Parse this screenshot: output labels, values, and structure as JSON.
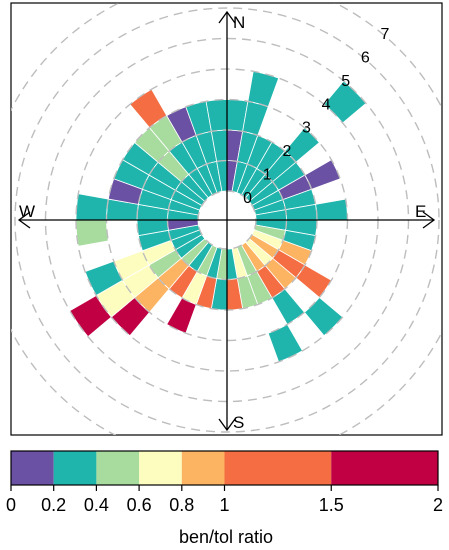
{
  "chart_data": {
    "type": "polar_bar",
    "compass": {
      "north": "N",
      "east": "E",
      "south": "S",
      "west": "W"
    },
    "radial_ticks": [
      "0",
      "1",
      "2",
      "3",
      "4",
      "5",
      "6",
      "7"
    ],
    "radial_range": [
      0,
      7
    ],
    "direction_bin_deg": 10,
    "speed_bin": 1,
    "legend": {
      "label": "ben/tol ratio",
      "placement": "bottom",
      "breaks": [
        0,
        0.2,
        0.4,
        0.6,
        0.8,
        1,
        1.5,
        2
      ],
      "tick_labels": [
        "0",
        "0.2",
        "0.4",
        "0.6",
        "0.8",
        "1",
        "1.5",
        "2"
      ],
      "colors": [
        "#6a51a3",
        "#1fb5ad",
        "#a8dc9f",
        "#fcfdbf",
        "#fdb462",
        "#f46d43",
        "#c00043"
      ]
    },
    "cells": [
      {
        "direction": 5,
        "speed_min": 0,
        "speed_max": 1,
        "ratio": 0.1
      },
      {
        "direction": 15,
        "speed_min": 0,
        "speed_max": 1,
        "ratio": 0.3
      },
      {
        "direction": 25,
        "speed_min": 0,
        "speed_max": 1,
        "ratio": 0.3
      },
      {
        "direction": 35,
        "speed_min": 0,
        "speed_max": 1,
        "ratio": 0.3
      },
      {
        "direction": 45,
        "speed_min": 0,
        "speed_max": 1,
        "ratio": 0.3
      },
      {
        "direction": 55,
        "speed_min": 0,
        "speed_max": 1,
        "ratio": 0.3
      },
      {
        "direction": 65,
        "speed_min": 0,
        "speed_max": 1,
        "ratio": 0.3
      },
      {
        "direction": 75,
        "speed_min": 0,
        "speed_max": 1,
        "ratio": 0.3
      },
      {
        "direction": 85,
        "speed_min": 0,
        "speed_max": 1,
        "ratio": 0.3
      },
      {
        "direction": 95,
        "speed_min": 0,
        "speed_max": 1,
        "ratio": 0.3
      },
      {
        "direction": 105,
        "speed_min": 0,
        "speed_max": 1,
        "ratio": 0.5
      },
      {
        "direction": 115,
        "speed_min": 0,
        "speed_max": 1,
        "ratio": 0.7
      },
      {
        "direction": 125,
        "speed_min": 0,
        "speed_max": 1,
        "ratio": 0.9
      },
      {
        "direction": 135,
        "speed_min": 0,
        "speed_max": 1,
        "ratio": 0.7
      },
      {
        "direction": 145,
        "speed_min": 0,
        "speed_max": 1,
        "ratio": 0.9
      },
      {
        "direction": 155,
        "speed_min": 0,
        "speed_max": 1,
        "ratio": 0.5
      },
      {
        "direction": 165,
        "speed_min": 0,
        "speed_max": 1,
        "ratio": 0.7
      },
      {
        "direction": 175,
        "speed_min": 0,
        "speed_max": 1,
        "ratio": 0.3
      },
      {
        "direction": 185,
        "speed_min": 0,
        "speed_max": 1,
        "ratio": 0.5
      },
      {
        "direction": 195,
        "speed_min": 0,
        "speed_max": 1,
        "ratio": 0.3
      },
      {
        "direction": 205,
        "speed_min": 0,
        "speed_max": 1,
        "ratio": 0.5
      },
      {
        "direction": 215,
        "speed_min": 0,
        "speed_max": 1,
        "ratio": 0.3
      },
      {
        "direction": 225,
        "speed_min": 0,
        "speed_max": 1,
        "ratio": 0.5
      },
      {
        "direction": 235,
        "speed_min": 0,
        "speed_max": 1,
        "ratio": 0.3
      },
      {
        "direction": 245,
        "speed_min": 0,
        "speed_max": 1,
        "ratio": 0.3
      },
      {
        "direction": 255,
        "speed_min": 0,
        "speed_max": 1,
        "ratio": 0.3
      },
      {
        "direction": 265,
        "speed_min": 0,
        "speed_max": 1,
        "ratio": 0.1
      },
      {
        "direction": 275,
        "speed_min": 0,
        "speed_max": 1,
        "ratio": 0.3
      },
      {
        "direction": 285,
        "speed_min": 0,
        "speed_max": 1,
        "ratio": 0.3
      },
      {
        "direction": 295,
        "speed_min": 0,
        "speed_max": 1,
        "ratio": 0.3
      },
      {
        "direction": 305,
        "speed_min": 0,
        "speed_max": 1,
        "ratio": 0.3
      },
      {
        "direction": 315,
        "speed_min": 0,
        "speed_max": 1,
        "ratio": 0.3
      },
      {
        "direction": 325,
        "speed_min": 0,
        "speed_max": 1,
        "ratio": 0.3
      },
      {
        "direction": 335,
        "speed_min": 0,
        "speed_max": 1,
        "ratio": 0.3
      },
      {
        "direction": 345,
        "speed_min": 0,
        "speed_max": 1,
        "ratio": 0.3
      },
      {
        "direction": 355,
        "speed_min": 0,
        "speed_max": 1,
        "ratio": 0.3
      },
      {
        "direction": 5,
        "speed_min": 1,
        "speed_max": 2,
        "ratio": 0.1
      },
      {
        "direction": 15,
        "speed_min": 1,
        "speed_max": 2,
        "ratio": 0.3
      },
      {
        "direction": 25,
        "speed_min": 1,
        "speed_max": 2,
        "ratio": 0.3
      },
      {
        "direction": 35,
        "speed_min": 1,
        "speed_max": 2,
        "ratio": 0.3
      },
      {
        "direction": 45,
        "speed_min": 1,
        "speed_max": 2,
        "ratio": 0.3
      },
      {
        "direction": 55,
        "speed_min": 1,
        "speed_max": 2,
        "ratio": 0.3
      },
      {
        "direction": 65,
        "speed_min": 1,
        "speed_max": 2,
        "ratio": 0.1
      },
      {
        "direction": 75,
        "speed_min": 1,
        "speed_max": 2,
        "ratio": 0.3
      },
      {
        "direction": 85,
        "speed_min": 1,
        "speed_max": 2,
        "ratio": 0.3
      },
      {
        "direction": 95,
        "speed_min": 1,
        "speed_max": 2,
        "ratio": 0.3
      },
      {
        "direction": 105,
        "speed_min": 1,
        "speed_max": 2,
        "ratio": 0.3
      },
      {
        "direction": 115,
        "speed_min": 1,
        "speed_max": 2,
        "ratio": 0.9
      },
      {
        "direction": 125,
        "speed_min": 1,
        "speed_max": 2,
        "ratio": 1.2
      },
      {
        "direction": 135,
        "speed_min": 1,
        "speed_max": 2,
        "ratio": 0.9
      },
      {
        "direction": 145,
        "speed_min": 1,
        "speed_max": 2,
        "ratio": 1.2
      },
      {
        "direction": 155,
        "speed_min": 1,
        "speed_max": 2,
        "ratio": 0.5
      },
      {
        "direction": 165,
        "speed_min": 1,
        "speed_max": 2,
        "ratio": 0.5
      },
      {
        "direction": 175,
        "speed_min": 1,
        "speed_max": 2,
        "ratio": 1.2
      },
      {
        "direction": 185,
        "speed_min": 1,
        "speed_max": 2,
        "ratio": 0.3
      },
      {
        "direction": 195,
        "speed_min": 1,
        "speed_max": 2,
        "ratio": 1.2
      },
      {
        "direction": 205,
        "speed_min": 1,
        "speed_max": 2,
        "ratio": 0.7
      },
      {
        "direction": 215,
        "speed_min": 1,
        "speed_max": 2,
        "ratio": 1.2
      },
      {
        "direction": 225,
        "speed_min": 1,
        "speed_max": 2,
        "ratio": 0.9
      },
      {
        "direction": 235,
        "speed_min": 1,
        "speed_max": 2,
        "ratio": 0.5
      },
      {
        "direction": 245,
        "speed_min": 1,
        "speed_max": 2,
        "ratio": 0.7
      },
      {
        "direction": 255,
        "speed_min": 1,
        "speed_max": 2,
        "ratio": 0.3
      },
      {
        "direction": 265,
        "speed_min": 1,
        "speed_max": 2,
        "ratio": 0.3
      },
      {
        "direction": 275,
        "speed_min": 1,
        "speed_max": 2,
        "ratio": 0.3
      },
      {
        "direction": 285,
        "speed_min": 1,
        "speed_max": 2,
        "ratio": 0.3
      },
      {
        "direction": 295,
        "speed_min": 1,
        "speed_max": 2,
        "ratio": 0.3
      },
      {
        "direction": 305,
        "speed_min": 1,
        "speed_max": 2,
        "ratio": 0.3
      },
      {
        "direction": 315,
        "speed_min": 1,
        "speed_max": 2,
        "ratio": 0.5
      },
      {
        "direction": 325,
        "speed_min": 1,
        "speed_max": 2,
        "ratio": 0.3
      },
      {
        "direction": 335,
        "speed_min": 1,
        "speed_max": 2,
        "ratio": 0.3
      },
      {
        "direction": 345,
        "speed_min": 1,
        "speed_max": 2,
        "ratio": 0.3
      },
      {
        "direction": 355,
        "speed_min": 1,
        "speed_max": 2,
        "ratio": 0.3
      },
      {
        "direction": 5,
        "speed_min": 2,
        "speed_max": 3,
        "ratio": 0.3
      },
      {
        "direction": 15,
        "speed_min": 2,
        "speed_max": 3,
        "ratio": 0.3
      },
      {
        "direction": 45,
        "speed_min": 2,
        "speed_max": 3,
        "ratio": 0.3
      },
      {
        "direction": 65,
        "speed_min": 2,
        "speed_max": 3,
        "ratio": 0.1
      },
      {
        "direction": 85,
        "speed_min": 2,
        "speed_max": 3,
        "ratio": 0.3
      },
      {
        "direction": 125,
        "speed_min": 2,
        "speed_max": 3,
        "ratio": 1.2
      },
      {
        "direction": 145,
        "speed_min": 2,
        "speed_max": 3,
        "ratio": 0.3
      },
      {
        "direction": 205,
        "speed_min": 2,
        "speed_max": 3,
        "ratio": 1.7
      },
      {
        "direction": 225,
        "speed_min": 2,
        "speed_max": 3,
        "ratio": 0.9
      },
      {
        "direction": 235,
        "speed_min": 2,
        "speed_max": 3,
        "ratio": 0.7
      },
      {
        "direction": 245,
        "speed_min": 2,
        "speed_max": 3,
        "ratio": 0.7
      },
      {
        "direction": 275,
        "speed_min": 2,
        "speed_max": 3,
        "ratio": 0.3
      },
      {
        "direction": 285,
        "speed_min": 2,
        "speed_max": 3,
        "ratio": 0.1
      },
      {
        "direction": 295,
        "speed_min": 2,
        "speed_max": 3,
        "ratio": 0.3
      },
      {
        "direction": 305,
        "speed_min": 2,
        "speed_max": 3,
        "ratio": 0.3
      },
      {
        "direction": 315,
        "speed_min": 2,
        "speed_max": 3,
        "ratio": 0.5
      },
      {
        "direction": 325,
        "speed_min": 2,
        "speed_max": 3,
        "ratio": 0.5
      },
      {
        "direction": 335,
        "speed_min": 2,
        "speed_max": 3,
        "ratio": 0.1
      },
      {
        "direction": 345,
        "speed_min": 2,
        "speed_max": 3,
        "ratio": 0.3
      },
      {
        "direction": 355,
        "speed_min": 2,
        "speed_max": 3,
        "ratio": 0.3
      },
      {
        "direction": 15,
        "speed_min": 3,
        "speed_max": 4,
        "ratio": 0.3
      },
      {
        "direction": 135,
        "speed_min": 3,
        "speed_max": 4,
        "ratio": 0.3
      },
      {
        "direction": 155,
        "speed_min": 3,
        "speed_max": 4,
        "ratio": 0.3
      },
      {
        "direction": 225,
        "speed_min": 3,
        "speed_max": 4,
        "ratio": 1.7
      },
      {
        "direction": 235,
        "speed_min": 3,
        "speed_max": 4,
        "ratio": 0.7
      },
      {
        "direction": 245,
        "speed_min": 3,
        "speed_max": 4,
        "ratio": 0.3
      },
      {
        "direction": 265,
        "speed_min": 3,
        "speed_max": 4,
        "ratio": 0.5
      },
      {
        "direction": 275,
        "speed_min": 3,
        "speed_max": 4,
        "ratio": 0.3
      },
      {
        "direction": 325,
        "speed_min": 3,
        "speed_max": 4,
        "ratio": 1.2
      },
      {
        "direction": 45,
        "speed_min": 4,
        "speed_max": 5,
        "ratio": 0.3
      },
      {
        "direction": 235,
        "speed_min": 4,
        "speed_max": 5,
        "ratio": 1.7
      }
    ]
  }
}
